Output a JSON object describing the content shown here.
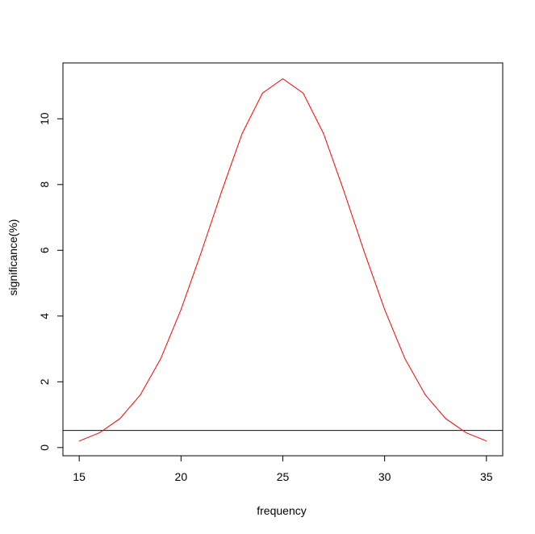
{
  "chart_data": {
    "type": "line",
    "title": "",
    "xlabel": "frequency",
    "ylabel": "significance(%)",
    "xlim": [
      14.2,
      35.8
    ],
    "ylim": [
      -0.25,
      11.7
    ],
    "x_ticks": [
      15,
      20,
      25,
      30,
      35
    ],
    "y_ticks": [
      0,
      2,
      4,
      6,
      8,
      10
    ],
    "grid": false,
    "legend": "none",
    "series": [
      {
        "color": "#ff0000",
        "x": [
          15,
          16,
          17,
          18,
          19,
          20,
          21,
          22,
          23,
          24,
          25,
          26,
          27,
          28,
          29,
          30,
          31,
          32,
          33,
          34,
          35
        ],
        "y": [
          0.2,
          0.45,
          0.88,
          1.6,
          2.7,
          4.2,
          5.95,
          7.8,
          9.55,
          10.78,
          11.22,
          10.78,
          9.55,
          7.8,
          5.95,
          4.2,
          2.7,
          1.6,
          0.88,
          0.45,
          0.2
        ]
      }
    ],
    "reference_lines": [
      {
        "orientation": "horizontal",
        "y": 0.52,
        "color": "#000080"
      }
    ]
  }
}
